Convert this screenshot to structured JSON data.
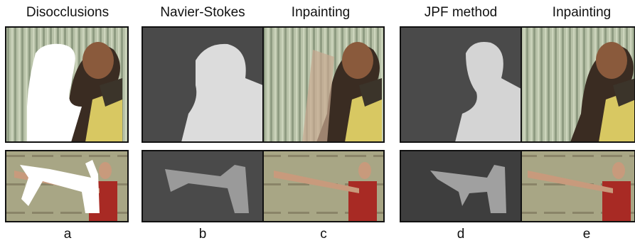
{
  "headers": [
    "Disocclusions",
    "Navier-Stokes",
    "Inpainting",
    "JPF method",
    "Inpainting"
  ],
  "labels": [
    "a",
    "b",
    "c",
    "d",
    "e"
  ]
}
